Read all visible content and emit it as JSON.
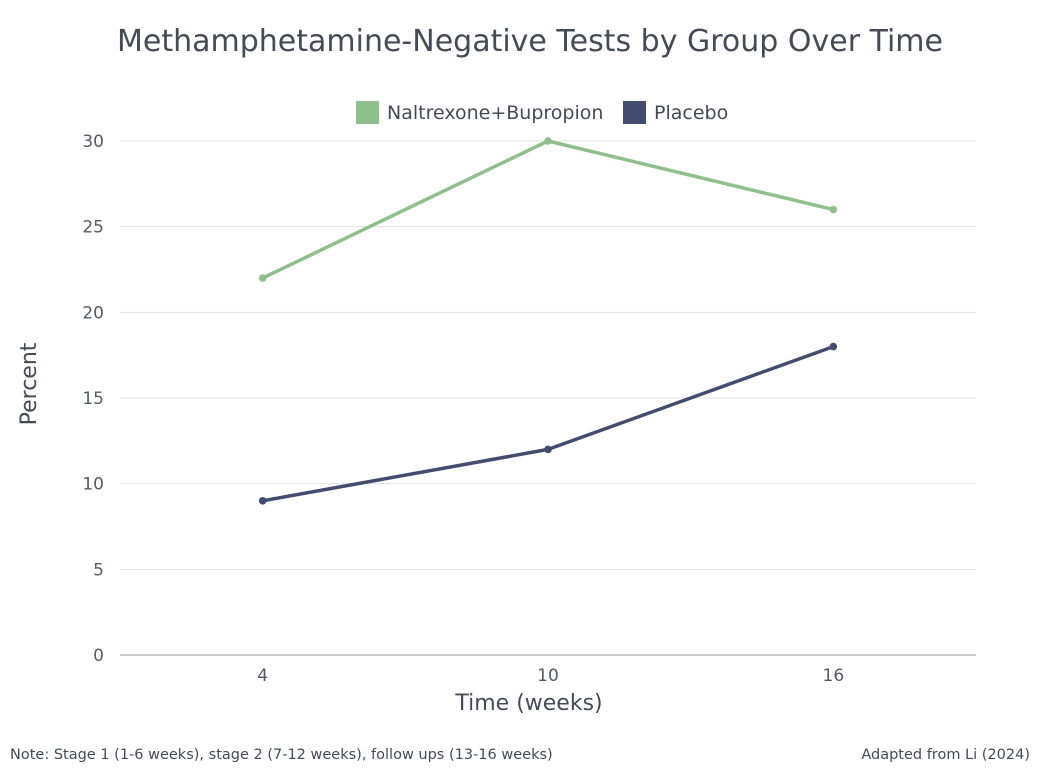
{
  "chart_data": {
    "type": "line",
    "title": "Methamphetamine-Negative Tests by Group Over Time",
    "xlabel": "Time (weeks)",
    "ylabel": "Percent",
    "x": [
      4,
      10,
      16
    ],
    "x_ticks": [
      "4",
      "10",
      "16"
    ],
    "xlim": [
      1,
      19
    ],
    "ylim": [
      0,
      30
    ],
    "y_ticks": [
      "0",
      "5",
      "10",
      "15",
      "20",
      "25",
      "30"
    ],
    "grid": true,
    "legend_position": "top-center",
    "series": [
      {
        "name": "Naltrexone+Bupropion",
        "color": "#8fbf8c",
        "values": [
          22,
          30,
          26
        ]
      },
      {
        "name": "Placebo",
        "color": "#434b6e",
        "values": [
          9,
          12,
          18
        ]
      }
    ]
  },
  "notes": {
    "left": "Note: Stage 1 (1-6 weeks), stage 2 (7-12 weeks), follow ups (13-16 weeks)",
    "right": "Adapted from Li (2024)"
  }
}
